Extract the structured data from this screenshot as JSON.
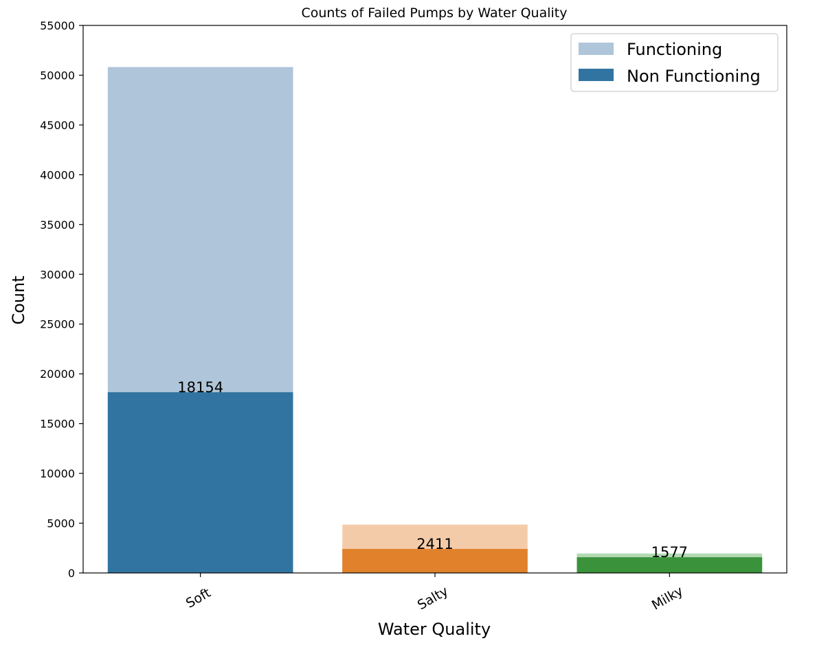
{
  "chart_data": {
    "type": "bar",
    "title": "Counts of Failed Pumps by Water Quality",
    "xlabel": "Water Quality",
    "ylabel": "Count",
    "ylim": [
      0,
      55000
    ],
    "yticks": [
      0,
      5000,
      10000,
      15000,
      20000,
      25000,
      30000,
      35000,
      40000,
      45000,
      50000,
      55000
    ],
    "categories": [
      "Soft",
      "Salty",
      "Milky"
    ],
    "grid": false,
    "legend_position": "top-right",
    "series": [
      {
        "name": "Functioning",
        "values": [
          50818,
          4856,
          1953
        ],
        "colors": [
          "#afc5d9",
          "#f4cba9",
          "#b2d9b2"
        ],
        "legend_color": "#afc5d9"
      },
      {
        "name": "Non Functioning",
        "values": [
          18154,
          2411,
          1577
        ],
        "colors": [
          "#3274a1",
          "#e1812c",
          "#3a923a"
        ],
        "legend_color": "#3274a1"
      }
    ],
    "data_labels": [
      "18154",
      "2411",
      "1577"
    ]
  }
}
